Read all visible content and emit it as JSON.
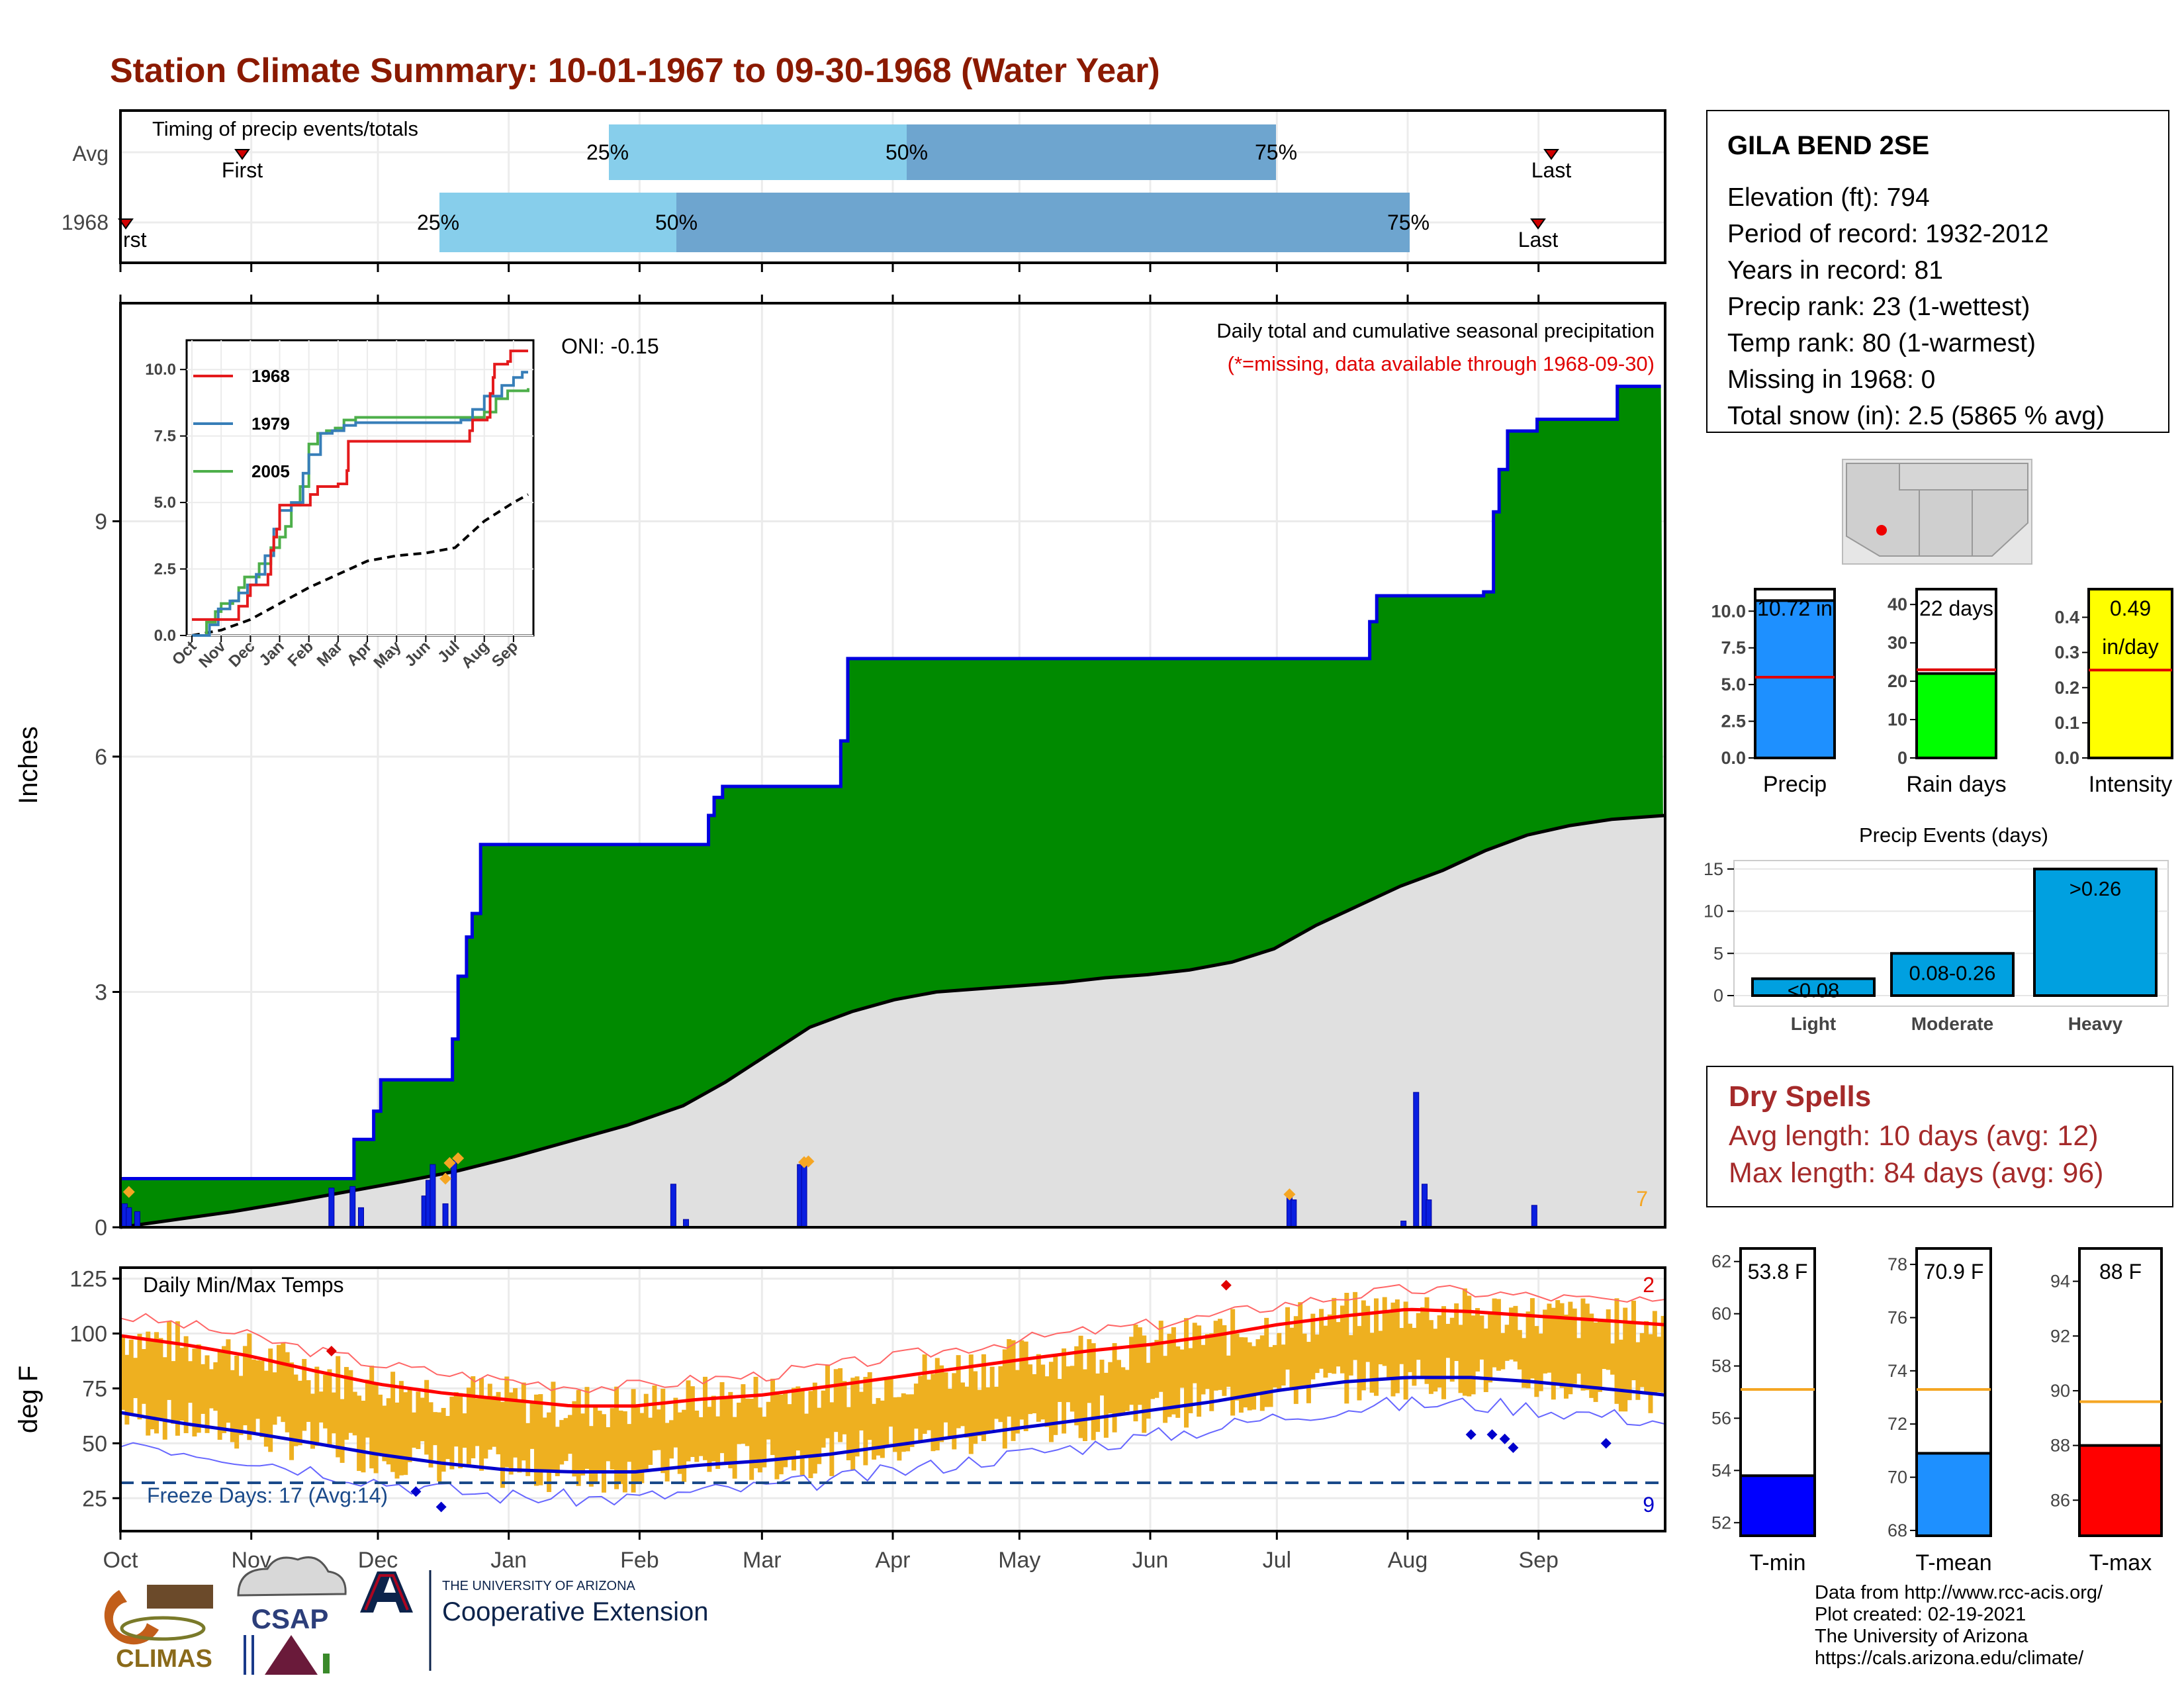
{
  "title": "Station Climate Summary: 10-01-1967 to 09-30-1968 (Water Year)",
  "colors": {
    "title": "#8b1a00",
    "cum_fill": "#008a00",
    "cum_line": "#0000e0",
    "avg_fill": "#e0e0e0",
    "bars": "#0a1fe0",
    "diamond": "#f5a623",
    "q1": "#87ceeb",
    "q2": "#6ea5cf",
    "temp_fill": "#eeb020",
    "tmax_line": "#ff0000",
    "tmin_line": "#0000cc",
    "dry": "#a52a2a"
  },
  "timing": {
    "label": "Timing of precip events/totals",
    "rows": [
      "Avg",
      "1968"
    ],
    "first_label": "First",
    "last_label": "Last",
    "first_label_1968": "rst",
    "q25": "25%",
    "q50": "50%",
    "q75": "75%"
  },
  "months": [
    "Oct",
    "Nov",
    "Dec",
    "Jan",
    "Feb",
    "Mar",
    "Apr",
    "May",
    "Jun",
    "Jul",
    "Aug",
    "Sep"
  ],
  "precip_panel": {
    "ylabel": "Inches",
    "yticks": [
      "0",
      "3",
      "6",
      "9"
    ],
    "oni": "ONI: -0.15",
    "subtitle": "Daily total and cumulative seasonal precipitation",
    "missing_note": "(*=missing, data available through 1968-09-30)",
    "corner_count": "7"
  },
  "inset": {
    "yticks": [
      "0.0",
      "2.5",
      "5.0",
      "7.5",
      "10.0"
    ],
    "months": [
      "Oct",
      "Nov",
      "Dec",
      "Jan",
      "Feb",
      "Mar",
      "Apr",
      "May",
      "Jun",
      "Jul",
      "Aug",
      "Sep"
    ],
    "legend": [
      {
        "name": "1968",
        "color": "#e41a1c"
      },
      {
        "name": "1979",
        "color": "#377eb8"
      },
      {
        "name": "2005",
        "color": "#4daf4a"
      }
    ]
  },
  "temp_panel": {
    "ylabel": "deg F",
    "yticks": [
      "25",
      "50",
      "75",
      "100",
      "125"
    ],
    "label": "Daily Min/Max Temps",
    "freeze": "Freeze Days: 17 (Avg:14)",
    "count_hot": "2",
    "count_cold": "9"
  },
  "station": {
    "name": "GILA BEND 2SE",
    "lines": [
      "Elevation (ft): 794",
      "Period of record: 1932-2012",
      "Years in record: 81",
      "Precip rank: 23 (1-wettest)",
      "Temp rank: 80 (1-warmest)",
      "Missing in 1968: 0",
      "Total snow (in): 2.5 (5865 % avg)"
    ]
  },
  "mini_bars": [
    {
      "name": "Precip",
      "value_text": "10.72 in",
      "ticks": [
        "0.0",
        "2.5",
        "5.0",
        "7.5",
        "10.0"
      ]
    },
    {
      "name": "Rain days",
      "value_text": "22 days",
      "ticks": [
        "0",
        "10",
        "20",
        "30",
        "40"
      ]
    },
    {
      "name": "Intensity",
      "value_text": "0.49",
      "value_text2": "in/day",
      "ticks": [
        "0.0",
        "0.1",
        "0.2",
        "0.3",
        "0.4"
      ]
    }
  ],
  "events": {
    "title": "Precip Events (days)",
    "yticks": [
      "0",
      "5",
      "10",
      "15"
    ],
    "categories": [
      "Light",
      "Moderate",
      "Heavy"
    ],
    "labels": [
      "<0.08",
      "0.08-0.26",
      ">0.26"
    ]
  },
  "dry": {
    "title": "Dry Spells",
    "avg": "Avg length: 10 days (avg: 12)",
    "max": "Max length: 84 days (avg: 96)"
  },
  "temp_bars": [
    {
      "name": "T-min",
      "value_text": "53.8 F",
      "ticks": [
        "52",
        "54",
        "56",
        "58",
        "60",
        "62"
      ]
    },
    {
      "name": "T-mean",
      "value_text": "70.9 F",
      "ticks": [
        "68",
        "70",
        "72",
        "74",
        "76",
        "78"
      ]
    },
    {
      "name": "T-max",
      "value_text": "88 F",
      "ticks": [
        "86",
        "88",
        "90",
        "92",
        "94"
      ]
    }
  ],
  "logos": {
    "climas": "CLIMAS",
    "csap": "CSAP",
    "ua_small": "THE UNIVERSITY OF ARIZONA",
    "coop": "Cooperative Extension"
  },
  "credits": [
    "Data from http://www.rcc-acis.org/",
    "Plot created: 02-19-2021",
    "The University of Arizona",
    "https://cals.arizona.edu/climate/"
  ],
  "chart_data": [
    {
      "type": "area",
      "title": "Daily total and cumulative seasonal precipitation",
      "ylabel": "Inches",
      "ylim": [
        0,
        11
      ],
      "cumulative_1968": [
        [
          0,
          0
        ],
        [
          3,
          0.62
        ],
        [
          166,
          1.12
        ],
        [
          180,
          1.48
        ],
        [
          185,
          1.88
        ],
        [
          236,
          2.4
        ],
        [
          240,
          3.2
        ],
        [
          246,
          3.7
        ],
        [
          250,
          4.0
        ],
        [
          256,
          4.88
        ],
        [
          418,
          5.25
        ],
        [
          422,
          5.48
        ],
        [
          428,
          5.62
        ],
        [
          512,
          6.2
        ],
        [
          517,
          7.25
        ],
        [
          885,
          7.72
        ],
        [
          892,
          8.05
        ],
        [
          969,
          8.1
        ],
        [
          983,
          9.12
        ],
        [
          990,
          9.66
        ],
        [
          996,
          10.15
        ],
        [
          1007,
          10.3
        ],
        [
          1002,
          10.72
        ],
        [
          1095,
          10.72
        ]
      ],
      "cumulative_avg": [
        [
          0,
          0
        ],
        [
          30,
          0.12
        ],
        [
          61,
          0.3
        ],
        [
          91,
          0.55
        ],
        [
          122,
          0.75
        ],
        [
          152,
          1.05
        ],
        [
          183,
          1.4
        ],
        [
          213,
          1.9
        ],
        [
          244,
          2.35
        ],
        [
          274,
          2.75
        ],
        [
          305,
          2.95
        ],
        [
          335,
          3.05
        ],
        [
          366,
          3.15
        ],
        [
          396,
          3.35
        ],
        [
          427,
          3.75
        ],
        [
          457,
          4.05
        ],
        [
          488,
          4.45
        ],
        [
          518,
          4.95
        ],
        [
          549,
          5.25
        ]
      ],
      "daily": [
        {
          "date": "1967-10-02",
          "in": 0.3
        },
        {
          "date": "1967-10-03",
          "in": 0.25
        },
        {
          "date": "1967-10-05",
          "in": 0.2
        },
        {
          "date": "1967-11-20",
          "in": 0.5
        },
        {
          "date": "1967-11-25",
          "in": 0.52
        },
        {
          "date": "1967-11-27",
          "in": 0.25
        },
        {
          "date": "1967-12-12",
          "in": 0.4
        },
        {
          "date": "1967-12-13",
          "in": 0.6
        },
        {
          "date": "1967-12-14",
          "in": 0.8
        },
        {
          "date": "1967-12-17",
          "in": 0.3
        },
        {
          "date": "1967-12-19",
          "in": 0.85
        },
        {
          "date": "1968-02-09",
          "in": 0.55
        },
        {
          "date": "1968-02-12",
          "in": 0.1
        },
        {
          "date": "1968-03-10",
          "in": 0.8
        },
        {
          "date": "1968-03-11",
          "in": 0.82
        },
        {
          "date": "1968-07-04",
          "in": 0.38
        },
        {
          "date": "1968-07-05",
          "in": 0.35
        },
        {
          "date": "1968-07-31",
          "in": 0.08
        },
        {
          "date": "1968-08-03",
          "in": 1.72
        },
        {
          "date": "1968-08-05",
          "in": 0.55
        },
        {
          "date": "1968-08-06",
          "in": 0.35
        },
        {
          "date": "1968-08-31",
          "in": 0.28
        }
      ]
    },
    {
      "type": "line",
      "title": "Daily Min/Max Temps",
      "ylabel": "deg F",
      "ylim": [
        10,
        130
      ],
      "tmax_normal": [
        [
          0,
          99
        ],
        [
          15,
          95
        ],
        [
          30,
          90
        ],
        [
          46,
          83
        ],
        [
          61,
          77
        ],
        [
          76,
          73
        ],
        [
          91,
          70
        ],
        [
          107,
          67
        ],
        [
          122,
          67
        ],
        [
          137,
          70
        ],
        [
          152,
          72
        ],
        [
          168,
          76
        ],
        [
          183,
          80
        ],
        [
          198,
          84
        ],
        [
          213,
          88
        ],
        [
          229,
          92
        ],
        [
          244,
          95
        ],
        [
          259,
          99
        ],
        [
          274,
          104
        ],
        [
          290,
          108
        ],
        [
          305,
          111
        ],
        [
          320,
          110
        ],
        [
          335,
          108
        ],
        [
          351,
          106
        ],
        [
          366,
          104
        ],
        [
          381,
          102
        ],
        [
          397,
          100
        ]
      ],
      "tmin_normal": [
        [
          0,
          64
        ],
        [
          15,
          59
        ],
        [
          30,
          55
        ],
        [
          46,
          50
        ],
        [
          61,
          45
        ],
        [
          76,
          41
        ],
        [
          91,
          38
        ],
        [
          107,
          37
        ],
        [
          122,
          37
        ],
        [
          137,
          40
        ],
        [
          152,
          42
        ],
        [
          168,
          45
        ],
        [
          183,
          49
        ],
        [
          198,
          53
        ],
        [
          213,
          57
        ],
        [
          229,
          61
        ],
        [
          244,
          65
        ],
        [
          259,
          69
        ],
        [
          274,
          74
        ],
        [
          290,
          78
        ],
        [
          305,
          80
        ],
        [
          320,
          80
        ],
        [
          335,
          78
        ],
        [
          351,
          75
        ],
        [
          366,
          72
        ],
        [
          381,
          70
        ],
        [
          397,
          66
        ]
      ],
      "freeze_line": 32
    },
    {
      "type": "bar",
      "categories": [
        "Light",
        "Moderate",
        "Heavy"
      ],
      "values": [
        2,
        5,
        15
      ],
      "ylim": [
        0,
        16
      ]
    }
  ]
}
